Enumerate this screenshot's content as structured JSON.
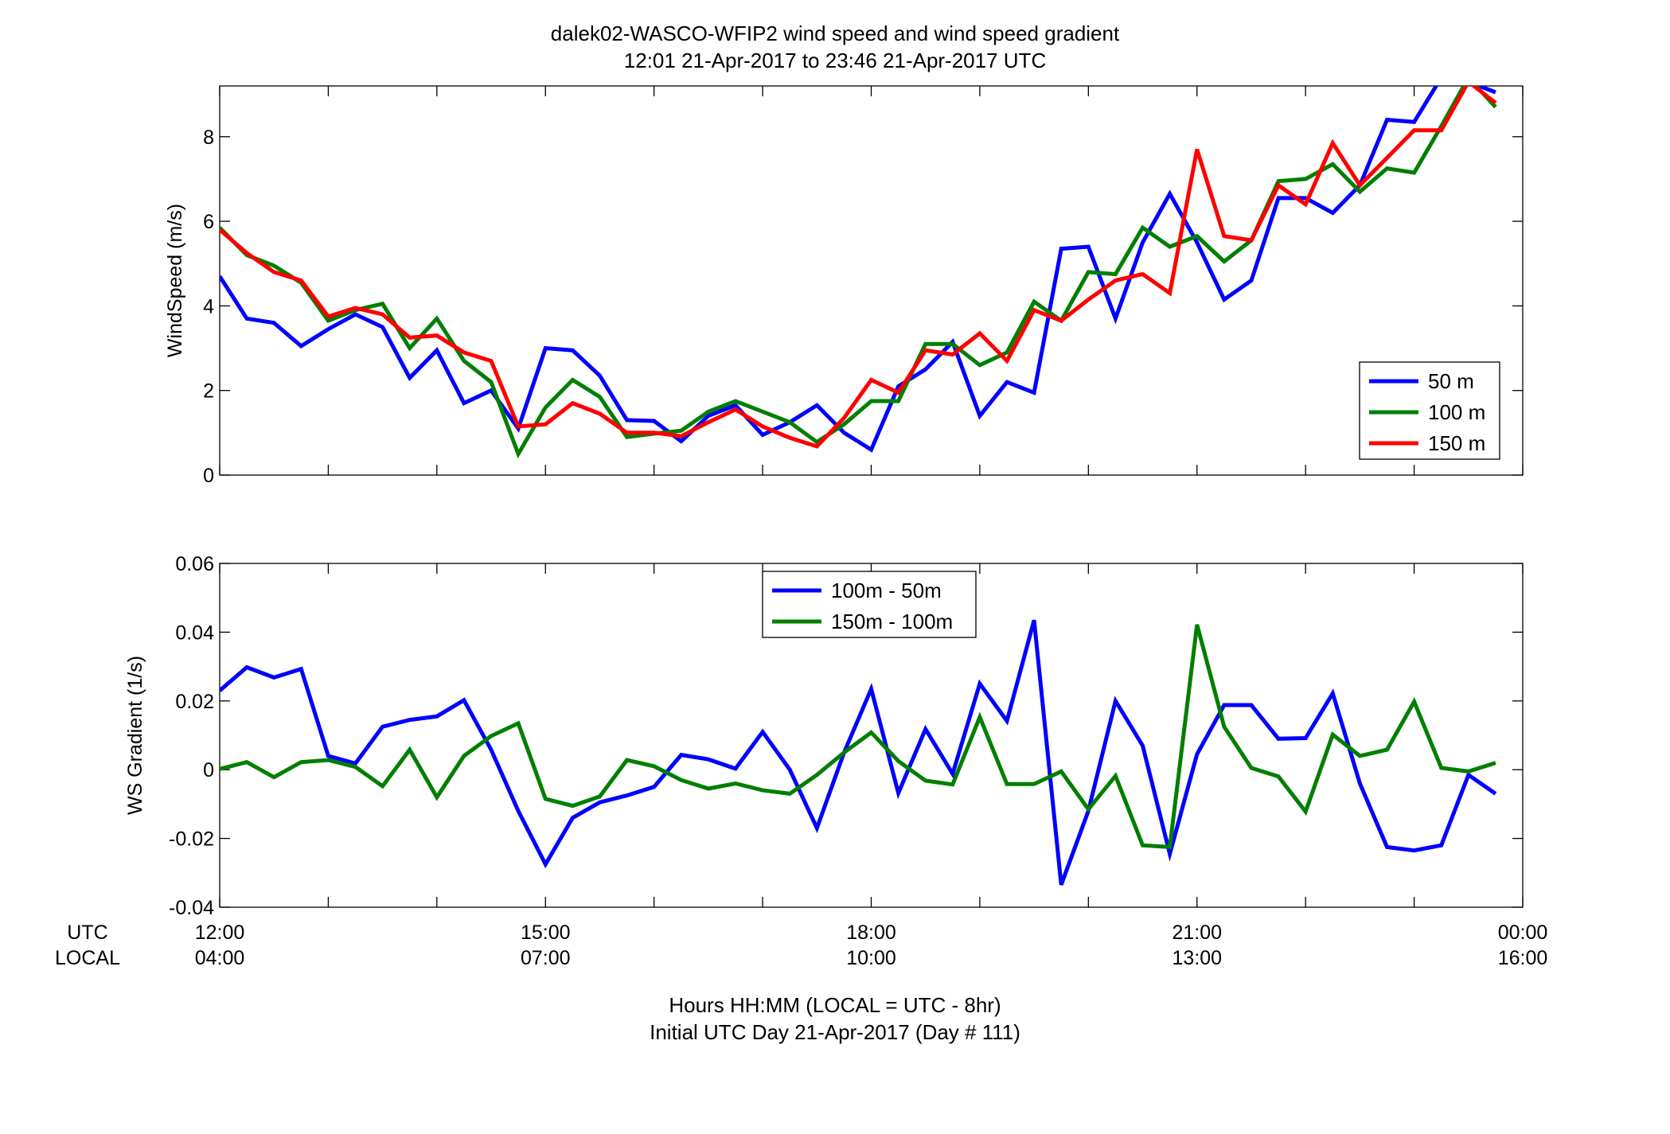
{
  "chart_data": [
    {
      "type": "line",
      "title": "dalek02-WASCO-WFIP2  wind speed and wind speed gradient",
      "subtitle": "12:01 21-Apr-2017 to 23:46 21-Apr-2017  UTC",
      "ylabel": "WindSpeed (m/s)",
      "xlim": [
        12,
        24
      ],
      "ylim": [
        0,
        9.2
      ],
      "yticks": [
        "0",
        "2",
        "4",
        "6",
        "8"
      ],
      "grid": false,
      "legend_position": "bottom-right",
      "x": [
        12.0,
        12.25,
        12.5,
        12.75,
        13.0,
        13.25,
        13.5,
        13.75,
        14.0,
        14.25,
        14.5,
        14.75,
        15.0,
        15.25,
        15.5,
        15.75,
        16.0,
        16.25,
        16.5,
        16.75,
        17.0,
        17.25,
        17.5,
        17.75,
        18.0,
        18.25,
        18.5,
        18.75,
        19.0,
        19.25,
        19.5,
        19.75,
        20.0,
        20.25,
        20.5,
        20.75,
        21.0,
        21.25,
        21.5,
        21.75,
        22.0,
        22.25,
        22.5,
        22.75,
        23.0,
        23.25,
        23.5,
        23.75
      ],
      "series": [
        {
          "name": "50 m",
          "color": "#0000ff",
          "values": [
            4.7,
            3.7,
            3.6,
            3.05,
            3.45,
            3.8,
            3.5,
            2.3,
            2.95,
            1.7,
            2.0,
            1.1,
            3.0,
            2.95,
            2.35,
            1.3,
            1.28,
            0.8,
            1.4,
            1.65,
            0.95,
            1.25,
            1.65,
            1.0,
            0.6,
            2.1,
            2.5,
            3.15,
            1.4,
            2.2,
            1.95,
            5.35,
            5.4,
            3.7,
            5.5,
            6.65,
            5.5,
            4.15,
            4.6,
            6.55,
            6.55,
            6.2,
            6.85,
            8.4,
            8.35,
            9.4,
            9.3,
            9.05
          ]
        },
        {
          "name": "100 m",
          "color": "#007f00",
          "values": [
            5.85,
            5.2,
            4.95,
            4.55,
            3.65,
            3.9,
            4.05,
            3.0,
            3.7,
            2.7,
            2.2,
            0.5,
            1.6,
            2.25,
            1.85,
            0.9,
            0.98,
            1.05,
            1.5,
            1.75,
            1.5,
            1.25,
            0.78,
            1.2,
            1.75,
            1.75,
            3.1,
            3.1,
            2.6,
            2.9,
            4.1,
            3.65,
            4.8,
            4.75,
            5.85,
            5.4,
            5.65,
            5.05,
            5.55,
            6.95,
            7.0,
            7.35,
            6.7,
            7.25,
            7.15,
            8.25,
            9.4,
            8.7
          ]
        },
        {
          "name": "150 m",
          "color": "#ff0000",
          "values": [
            5.8,
            5.25,
            4.8,
            4.6,
            3.75,
            3.95,
            3.8,
            3.25,
            3.3,
            2.9,
            2.7,
            1.15,
            1.2,
            1.7,
            1.45,
            1.0,
            1.0,
            0.92,
            1.25,
            1.55,
            1.15,
            0.88,
            0.68,
            1.35,
            2.25,
            1.95,
            2.95,
            2.85,
            3.35,
            2.7,
            3.9,
            3.65,
            4.15,
            4.6,
            4.75,
            4.3,
            7.7,
            5.65,
            5.55,
            6.85,
            6.4,
            7.85,
            6.85,
            7.5,
            8.15,
            8.15,
            9.3,
            8.8
          ]
        }
      ]
    },
    {
      "type": "line",
      "ylabel": "WS Gradient (1/s)",
      "xlim": [
        12,
        24
      ],
      "ylim": [
        -0.04,
        0.06
      ],
      "yticks": [
        "-0.04",
        "-0.02",
        "0",
        "0.02",
        "0.04",
        "0.06"
      ],
      "grid": false,
      "legend_position": "top-center",
      "x": [
        12.0,
        12.25,
        12.5,
        12.75,
        13.0,
        13.25,
        13.5,
        13.75,
        14.0,
        14.25,
        14.5,
        14.75,
        15.0,
        15.25,
        15.5,
        15.75,
        16.0,
        16.25,
        16.5,
        16.75,
        17.0,
        17.25,
        17.5,
        17.75,
        18.0,
        18.25,
        18.5,
        18.75,
        19.0,
        19.25,
        19.5,
        19.75,
        20.0,
        20.25,
        20.5,
        20.75,
        21.0,
        21.25,
        21.5,
        21.75,
        22.0,
        22.25,
        22.5,
        22.75,
        23.0,
        23.25,
        23.5,
        23.75
      ],
      "series": [
        {
          "name": "100m - 50m",
          "color": "#0000ff",
          "values": [
            0.023,
            0.0298,
            0.0268,
            0.0293,
            0.004,
            0.0018,
            0.0125,
            0.0145,
            0.0155,
            0.0202,
            0.0058,
            -0.012,
            -0.0275,
            -0.014,
            -0.0095,
            -0.0075,
            -0.005,
            0.0043,
            0.003,
            0.0003,
            0.011,
            0.0,
            -0.017,
            0.005,
            0.0235,
            -0.0068,
            0.0118,
            -0.0012,
            0.025,
            0.0142,
            0.0435,
            -0.0335,
            -0.012,
            0.02,
            0.007,
            -0.0245,
            0.0045,
            0.0188,
            0.0188,
            0.009,
            0.0092,
            0.0222,
            -0.004,
            -0.0225,
            -0.0235,
            -0.022,
            -0.0015,
            -0.007
          ]
        },
        {
          "name": "150m - 100m",
          "color": "#007f00",
          "values": [
            0.0002,
            0.0022,
            -0.0022,
            0.0022,
            0.0028,
            0.0008,
            -0.0048,
            0.0058,
            -0.008,
            0.004,
            0.0098,
            0.0135,
            -0.0085,
            -0.0105,
            -0.0078,
            0.0028,
            0.001,
            -0.003,
            -0.0055,
            -0.004,
            -0.006,
            -0.007,
            -0.0015,
            0.005,
            0.0108,
            0.0025,
            -0.0032,
            -0.0043,
            0.0153,
            -0.0042,
            -0.0042,
            -0.0005,
            -0.0115,
            -0.0018,
            -0.022,
            -0.0225,
            0.0422,
            0.0125,
            0.0005,
            -0.002,
            -0.0122,
            0.0102,
            0.004,
            0.0058,
            0.0198,
            0.0005,
            -0.0005,
            0.002
          ]
        }
      ]
    }
  ],
  "xaxis": {
    "row_labels": {
      "utc": "UTC",
      "local": "LOCAL"
    },
    "ticks": [
      {
        "x": 12,
        "utc": "12:00",
        "local": "04:00"
      },
      {
        "x": 15,
        "utc": "15:00",
        "local": "07:00"
      },
      {
        "x": 18,
        "utc": "18:00",
        "local": "10:00"
      },
      {
        "x": 21,
        "utc": "21:00",
        "local": "13:00"
      },
      {
        "x": 24,
        "utc": "00:00",
        "local": "16:00"
      }
    ],
    "xlabel": "Hours HH:MM  (LOCAL = UTC - 8hr)",
    "xlabel2": "Initial UTC Day 21-Apr-2017 (Day # 111)"
  }
}
